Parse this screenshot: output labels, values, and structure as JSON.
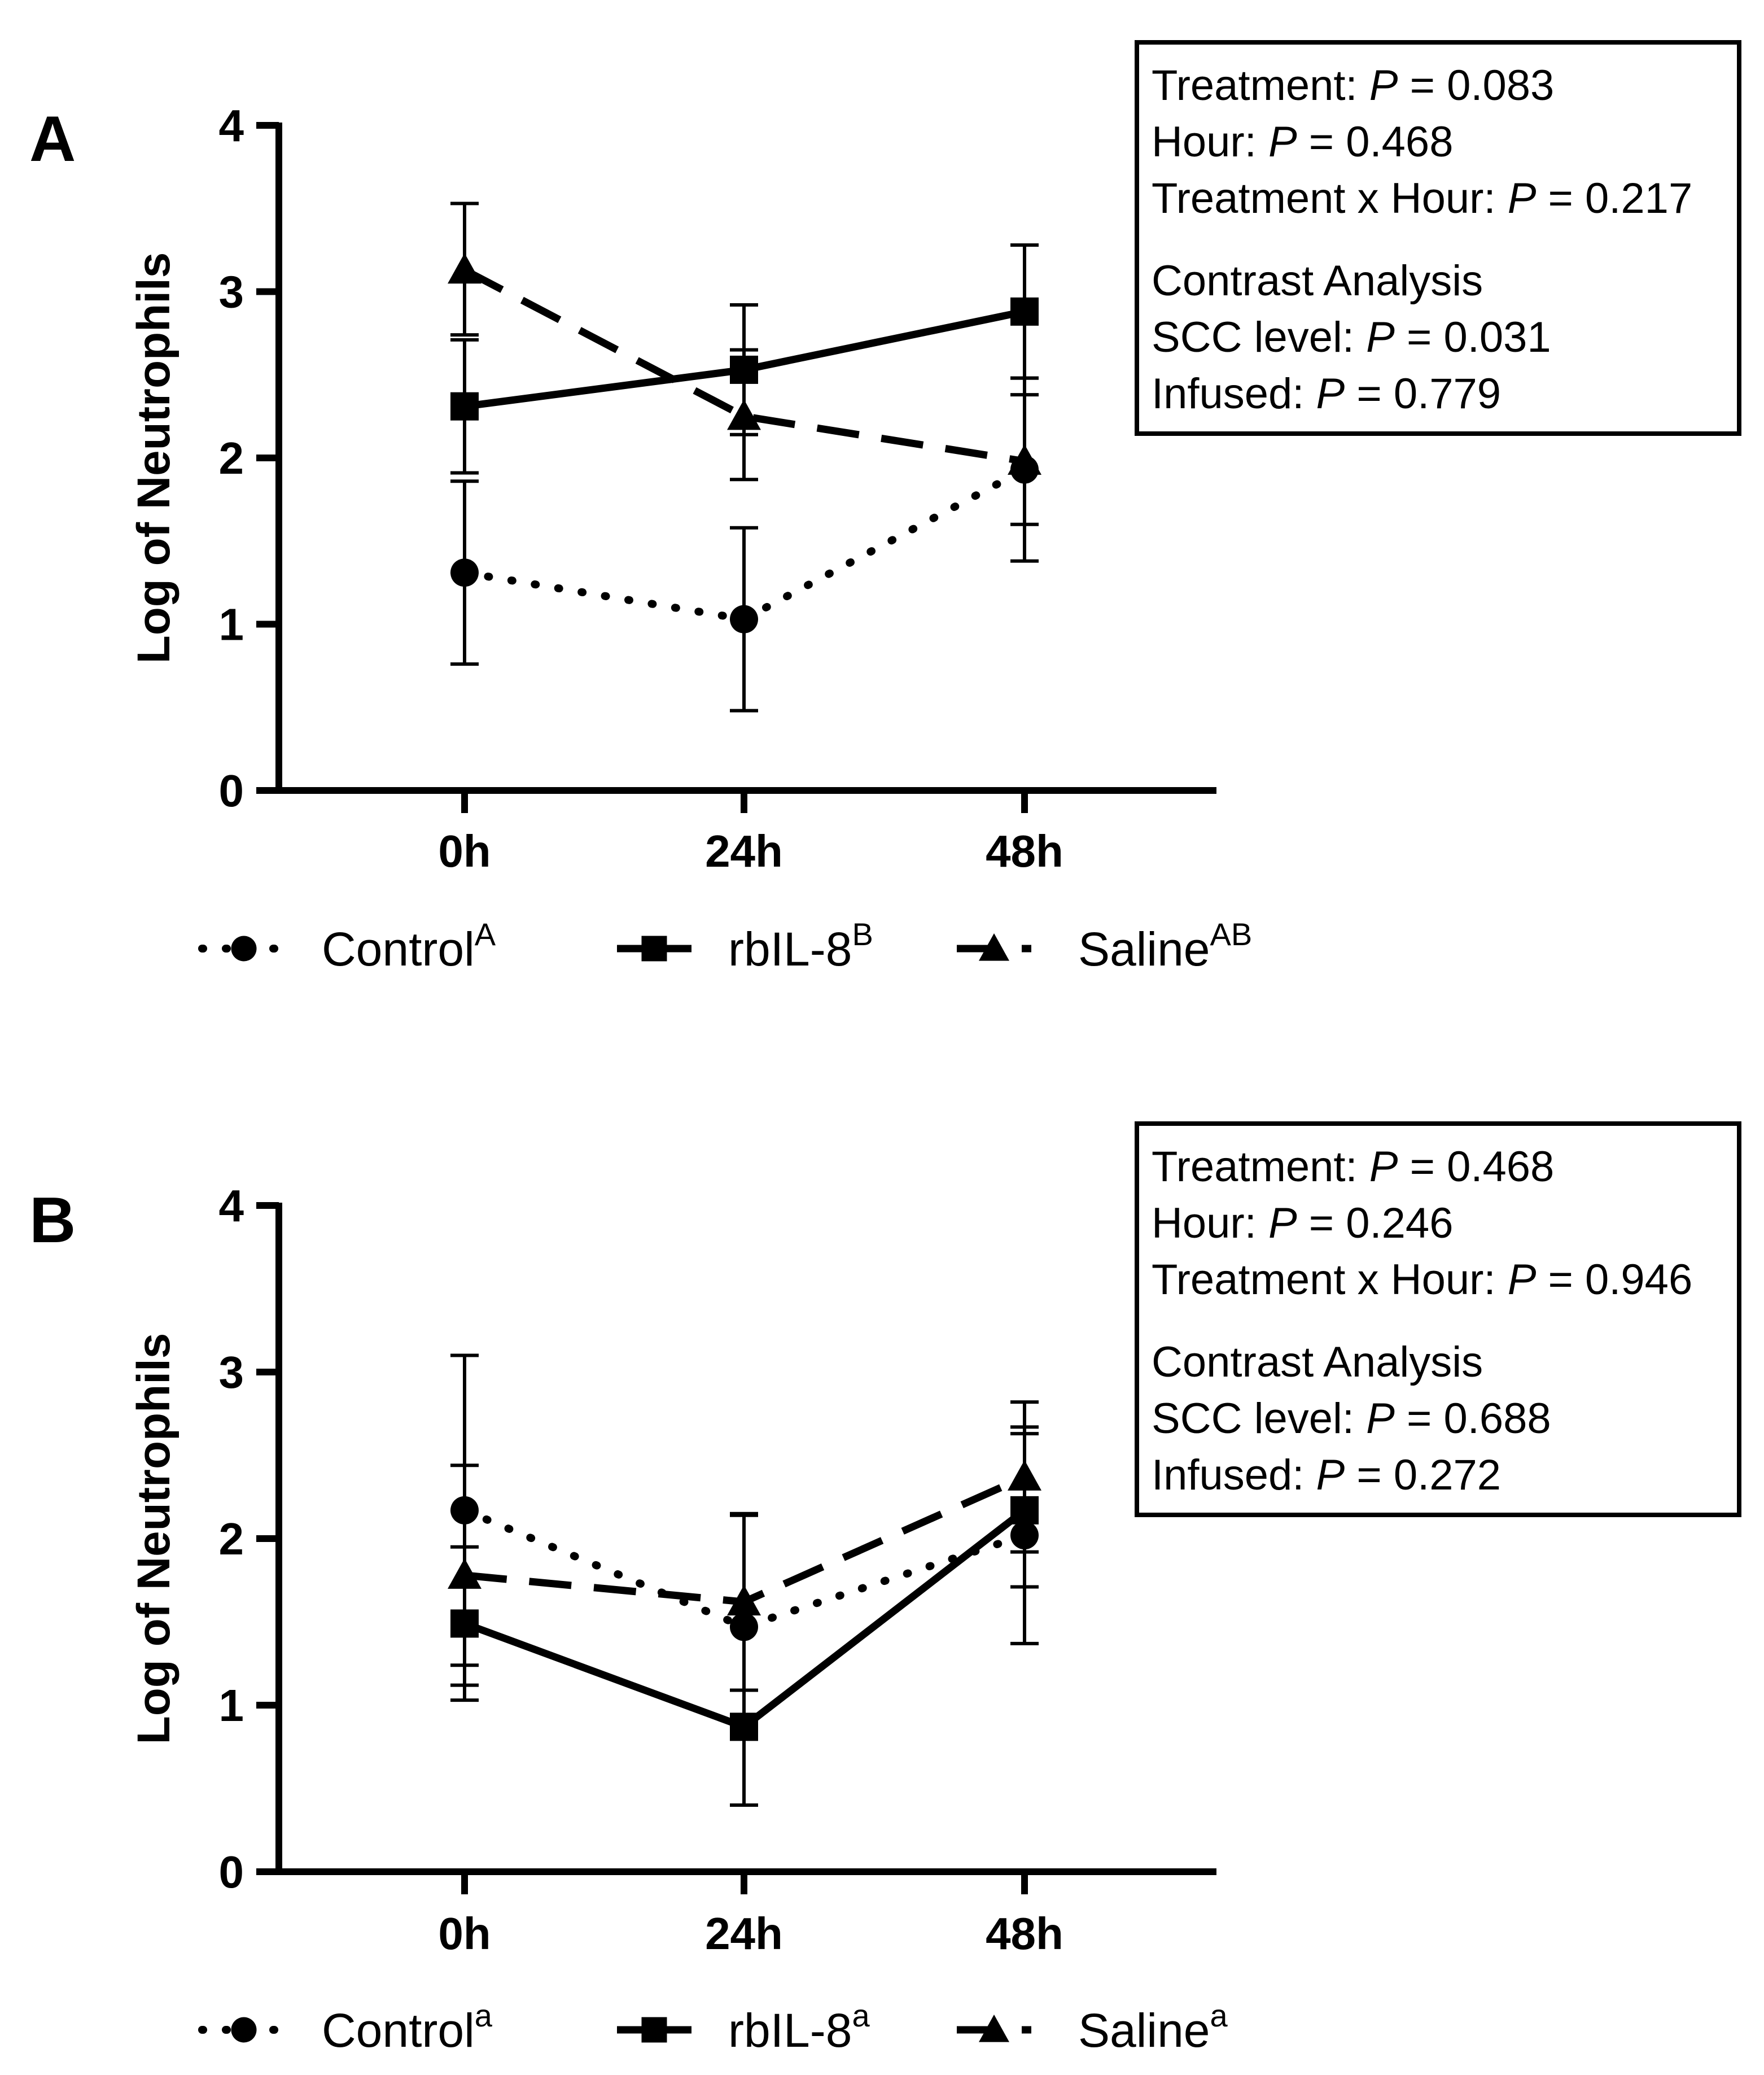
{
  "chart_data": [
    {
      "type": "line",
      "panel": "A",
      "title": "",
      "xlabel": "",
      "ylabel": "Log of Neutrophils",
      "categories": [
        "0h",
        "24h",
        "48h"
      ],
      "ylim": [
        0,
        4
      ],
      "yticks": [
        "0",
        "1",
        "2",
        "3",
        "4"
      ],
      "series": [
        {
          "key": "control",
          "name": "Control",
          "sup": "A",
          "style": "dotted",
          "marker": "circle",
          "values": [
            1.31,
            1.03,
            1.93
          ],
          "err_low": [
            0.76,
            0.48,
            1.38
          ],
          "err_high": [
            1.86,
            1.58,
            2.48
          ]
        },
        {
          "key": "rbil8",
          "name": "rbIL-8",
          "sup": "B",
          "style": "solid",
          "marker": "square",
          "values": [
            2.31,
            2.53,
            2.88
          ],
          "err_low": [
            1.91,
            2.14,
            2.48
          ],
          "err_high": [
            2.71,
            2.92,
            3.28
          ]
        },
        {
          "key": "saline",
          "name": "Saline",
          "sup": "AB",
          "style": "dashed",
          "marker": "triangle",
          "values": [
            3.13,
            2.25,
            1.98
          ],
          "err_low": [
            2.74,
            1.87,
            1.6
          ],
          "err_high": [
            3.53,
            2.65,
            2.38
          ]
        }
      ],
      "stats": {
        "lines": [
          {
            "prefix": "Treatment: ",
            "p": "P",
            "value": " = 0.083"
          },
          {
            "prefix": "Hour: ",
            "p": "P",
            "value": " = 0.468"
          },
          {
            "prefix": "Treatment x Hour: ",
            "p": "P",
            "value": " = 0.217"
          },
          {
            "prefix": "Contrast Analysis",
            "p": "",
            "value": ""
          },
          {
            "prefix": "SCC level: ",
            "p": "P",
            "value": " = 0.031"
          },
          {
            "prefix": "Infused: ",
            "p": "P",
            "value": " = 0.779"
          }
        ]
      }
    },
    {
      "type": "line",
      "panel": "B",
      "title": "",
      "xlabel": "",
      "ylabel": "Log of Neutrophils",
      "categories": [
        "0h",
        "24h",
        "48h"
      ],
      "ylim": [
        0,
        4
      ],
      "yticks": [
        "0",
        "1",
        "2",
        "3",
        "4"
      ],
      "series": [
        {
          "key": "control",
          "name": "Control",
          "sup": "a",
          "style": "dotted",
          "marker": "circle",
          "values": [
            2.17,
            1.47,
            2.02
          ],
          "err_low": [
            1.24,
            0.8,
            1.37
          ],
          "err_high": [
            3.1,
            2.14,
            2.67
          ]
        },
        {
          "key": "rbil8",
          "name": "rbIL-8",
          "sup": "a",
          "style": "solid",
          "marker": "square",
          "values": [
            1.49,
            0.87,
            2.17
          ],
          "err_low": [
            1.03,
            0.4,
            1.71
          ],
          "err_high": [
            1.95,
            1.09,
            2.63
          ]
        },
        {
          "key": "saline",
          "name": "Saline",
          "sup": "a",
          "style": "dashed",
          "marker": "triangle",
          "values": [
            1.78,
            1.62,
            2.37
          ],
          "err_low": [
            1.12,
            1.09,
            1.92
          ],
          "err_high": [
            2.44,
            2.15,
            2.82
          ]
        }
      ],
      "stats": {
        "lines": [
          {
            "prefix": "Treatment: ",
            "p": "P",
            "value": " = 0.468"
          },
          {
            "prefix": "Hour: ",
            "p": "P",
            "value": " = 0.246"
          },
          {
            "prefix": "Treatment x Hour: ",
            "p": "P",
            "value": " = 0.946"
          },
          {
            "prefix": "Contrast Analysis",
            "p": "",
            "value": ""
          },
          {
            "prefix": "SCC level: ",
            "p": "P",
            "value": " = 0.688"
          },
          {
            "prefix": "Infused: ",
            "p": "P",
            "value": " = 0.272"
          }
        ]
      }
    }
  ]
}
